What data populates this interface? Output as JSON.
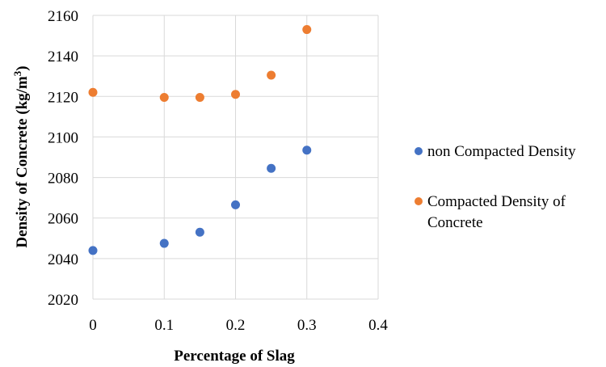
{
  "chart_data": {
    "type": "scatter",
    "title": "",
    "xlabel": "Percentage of  Slag",
    "ylabel_main": "Density of Concrete (kg/m",
    "ylabel_sup": "3",
    "ylabel_close": ")",
    "xlim": [
      0,
      0.4
    ],
    "ylim": [
      2020,
      2160
    ],
    "x_ticks": [
      0,
      0.1,
      0.2,
      0.3,
      0.4
    ],
    "x_tick_labels": [
      "0",
      "0.1",
      "0.2",
      "0.3",
      "0.4"
    ],
    "y_ticks": [
      2020,
      2040,
      2060,
      2080,
      2100,
      2120,
      2140,
      2160
    ],
    "y_tick_labels": [
      "2020",
      "2040",
      "2060",
      "2080",
      "2100",
      "2120",
      "2140",
      "2160"
    ],
    "grid": true,
    "legend_position": "right",
    "series": [
      {
        "name": "non Compacted Density",
        "name_lines": [
          "non Compacted Density"
        ],
        "color": "#4472C4",
        "x": [
          0,
          0.1,
          0.15,
          0.2,
          0.25,
          0.3
        ],
        "y": [
          2044,
          2047.5,
          2053,
          2066.5,
          2084.5,
          2093.5
        ]
      },
      {
        "name": "Compacted Density of Concrete",
        "name_lines": [
          "Compacted Density of",
          "Concrete"
        ],
        "color": "#ED7D31",
        "x": [
          0,
          0.1,
          0.15,
          0.2,
          0.25,
          0.3
        ],
        "y": [
          2122,
          2119.5,
          2119.5,
          2121,
          2130.5,
          2153
        ]
      }
    ]
  }
}
